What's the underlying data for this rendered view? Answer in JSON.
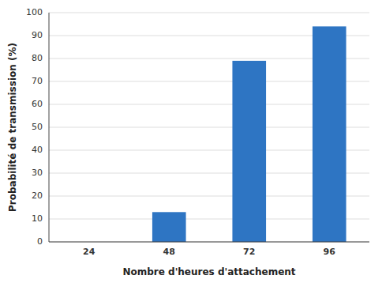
{
  "chart_data": {
    "type": "bar",
    "categories": [
      "24",
      "48",
      "72",
      "96"
    ],
    "values": [
      0,
      13,
      79,
      94
    ],
    "color": "#2E75C3",
    "xlabel": "Nombre d'heures d'attachement",
    "ylabel": "Probabilité de transmission (%)",
    "ylim": [
      0,
      100
    ],
    "yticks": [
      0,
      10,
      20,
      30,
      40,
      50,
      60,
      70,
      80,
      90,
      100
    ],
    "grid": true
  }
}
